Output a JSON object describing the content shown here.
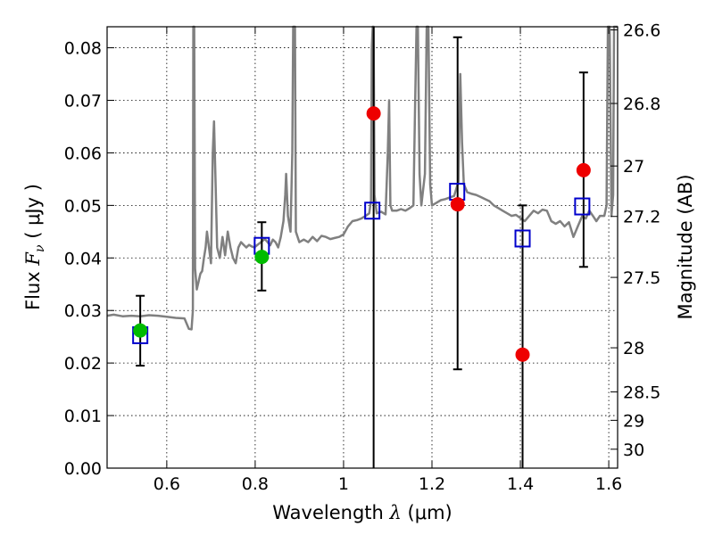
{
  "chart_data": {
    "type": "scatter",
    "xlabel_text": "Wavelength",
    "xlabel_symbol": "λ",
    "xlabel_unit": "(μm)",
    "ylabel_text": "Flux",
    "ylabel_symbol": "F",
    "ylabel_subscript": "ν",
    "ylabel_unit": "( μJy )",
    "y2label": "Magnitude (AB)",
    "xlim": [
      0.465,
      1.62
    ],
    "ylim": [
      0.0,
      0.084
    ],
    "grid": true,
    "x_ticks": [
      0.6,
      0.8,
      1.0,
      1.2,
      1.4,
      1.6
    ],
    "x_tick_labels": [
      "0.6",
      "0.8",
      "1",
      "1.2",
      "1.4",
      "1.6"
    ],
    "y_ticks": [
      0.0,
      0.01,
      0.02,
      0.03,
      0.04,
      0.05,
      0.06,
      0.07,
      0.08
    ],
    "y_tick_labels": [
      "0.00",
      "0.01",
      "0.02",
      "0.03",
      "0.04",
      "0.05",
      "0.06",
      "0.07",
      "0.08"
    ],
    "y2_ticks": [
      {
        "label": "26.6",
        "flux": 0.0834
      },
      {
        "label": "26.8",
        "flux": 0.0694
      },
      {
        "label": "27",
        "flux": 0.0575
      },
      {
        "label": "27.2",
        "flux": 0.0479
      },
      {
        "label": "27.5",
        "flux": 0.0363
      },
      {
        "label": "28",
        "flux": 0.0229
      },
      {
        "label": "28.5",
        "flux": 0.0145
      },
      {
        "label": "29",
        "flux": 0.0091
      },
      {
        "label": "30",
        "flux": 0.0036
      }
    ],
    "template_spectrum": {
      "color": "#808080",
      "points": [
        [
          0.465,
          0.029
        ],
        [
          0.48,
          0.0292
        ],
        [
          0.5,
          0.0289
        ],
        [
          0.52,
          0.029
        ],
        [
          0.54,
          0.0289
        ],
        [
          0.56,
          0.0291
        ],
        [
          0.58,
          0.029
        ],
        [
          0.6,
          0.0288
        ],
        [
          0.62,
          0.0286
        ],
        [
          0.64,
          0.0285
        ],
        [
          0.65,
          0.0265
        ],
        [
          0.656,
          0.0264
        ],
        [
          0.659,
          0.03
        ],
        [
          0.66,
          0.084
        ],
        [
          0.662,
          0.084
        ],
        [
          0.664,
          0.038
        ],
        [
          0.668,
          0.034
        ],
        [
          0.672,
          0.0355
        ],
        [
          0.676,
          0.037
        ],
        [
          0.68,
          0.0375
        ],
        [
          0.684,
          0.04
        ],
        [
          0.688,
          0.042
        ],
        [
          0.691,
          0.045
        ],
        [
          0.694,
          0.043
        ],
        [
          0.7,
          0.039
        ],
        [
          0.704,
          0.06
        ],
        [
          0.707,
          0.066
        ],
        [
          0.71,
          0.056
        ],
        [
          0.714,
          0.042
        ],
        [
          0.72,
          0.04
        ],
        [
          0.726,
          0.044
        ],
        [
          0.732,
          0.0405
        ],
        [
          0.738,
          0.045
        ],
        [
          0.744,
          0.042
        ],
        [
          0.75,
          0.04
        ],
        [
          0.756,
          0.039
        ],
        [
          0.762,
          0.042
        ],
        [
          0.768,
          0.043
        ],
        [
          0.774,
          0.0425
        ],
        [
          0.78,
          0.042
        ],
        [
          0.786,
          0.0425
        ],
        [
          0.792,
          0.0422
        ],
        [
          0.798,
          0.042
        ],
        [
          0.804,
          0.0424
        ],
        [
          0.81,
          0.0428
        ],
        [
          0.816,
          0.0432
        ],
        [
          0.822,
          0.0436
        ],
        [
          0.828,
          0.043
        ],
        [
          0.834,
          0.0424
        ],
        [
          0.84,
          0.0435
        ],
        [
          0.846,
          0.043
        ],
        [
          0.852,
          0.042
        ],
        [
          0.858,
          0.044
        ],
        [
          0.864,
          0.047
        ],
        [
          0.868,
          0.052
        ],
        [
          0.87,
          0.056
        ],
        [
          0.874,
          0.048
        ],
        [
          0.88,
          0.045
        ],
        [
          0.884,
          0.06
        ],
        [
          0.886,
          0.084
        ],
        [
          0.89,
          0.084
        ],
        [
          0.892,
          0.045
        ],
        [
          0.9,
          0.043
        ],
        [
          0.91,
          0.0435
        ],
        [
          0.92,
          0.043
        ],
        [
          0.93,
          0.044
        ],
        [
          0.94,
          0.0432
        ],
        [
          0.95,
          0.0442
        ],
        [
          0.96,
          0.044
        ],
        [
          0.97,
          0.0436
        ],
        [
          0.98,
          0.0438
        ],
        [
          0.99,
          0.044
        ],
        [
          1.0,
          0.0445
        ],
        [
          1.01,
          0.046
        ],
        [
          1.02,
          0.047
        ],
        [
          1.03,
          0.0472
        ],
        [
          1.04,
          0.0475
        ],
        [
          1.05,
          0.048
        ],
        [
          1.058,
          0.0485
        ],
        [
          1.062,
          0.051
        ],
        [
          1.064,
          0.08
        ],
        [
          1.066,
          0.084
        ],
        [
          1.068,
          0.084
        ],
        [
          1.07,
          0.052
        ],
        [
          1.075,
          0.0485
        ],
        [
          1.085,
          0.0488
        ],
        [
          1.095,
          0.0483
        ],
        [
          1.1,
          0.06
        ],
        [
          1.103,
          0.07
        ],
        [
          1.106,
          0.05
        ],
        [
          1.11,
          0.049
        ],
        [
          1.12,
          0.049
        ],
        [
          1.13,
          0.0493
        ],
        [
          1.14,
          0.049
        ],
        [
          1.15,
          0.0495
        ],
        [
          1.158,
          0.05
        ],
        [
          1.162,
          0.07
        ],
        [
          1.165,
          0.084
        ],
        [
          1.168,
          0.084
        ],
        [
          1.172,
          0.056
        ],
        [
          1.176,
          0.05
        ],
        [
          1.184,
          0.056
        ],
        [
          1.188,
          0.084
        ],
        [
          1.192,
          0.084
        ],
        [
          1.196,
          0.054
        ],
        [
          1.2,
          0.05
        ],
        [
          1.21,
          0.0505
        ],
        [
          1.22,
          0.051
        ],
        [
          1.23,
          0.0512
        ],
        [
          1.24,
          0.0515
        ],
        [
          1.25,
          0.0518
        ],
        [
          1.26,
          0.0545
        ],
        [
          1.264,
          0.075
        ],
        [
          1.268,
          0.062
        ],
        [
          1.272,
          0.054
        ],
        [
          1.28,
          0.0525
        ],
        [
          1.29,
          0.0522
        ],
        [
          1.3,
          0.052
        ],
        [
          1.31,
          0.0516
        ],
        [
          1.32,
          0.0512
        ],
        [
          1.33,
          0.0508
        ],
        [
          1.34,
          0.05
        ],
        [
          1.35,
          0.0495
        ],
        [
          1.36,
          0.049
        ],
        [
          1.37,
          0.0485
        ],
        [
          1.38,
          0.048
        ],
        [
          1.39,
          0.0482
        ],
        [
          1.4,
          0.0476
        ],
        [
          1.41,
          0.047
        ],
        [
          1.42,
          0.048
        ],
        [
          1.43,
          0.049
        ],
        [
          1.44,
          0.0485
        ],
        [
          1.45,
          0.0492
        ],
        [
          1.46,
          0.049
        ],
        [
          1.47,
          0.047
        ],
        [
          1.48,
          0.0465
        ],
        [
          1.49,
          0.047
        ],
        [
          1.5,
          0.046
        ],
        [
          1.51,
          0.0468
        ],
        [
          1.52,
          0.044
        ],
        [
          1.53,
          0.046
        ],
        [
          1.54,
          0.048
        ],
        [
          1.548,
          0.0475
        ],
        [
          1.556,
          0.049
        ],
        [
          1.564,
          0.048
        ],
        [
          1.572,
          0.047
        ],
        [
          1.58,
          0.048
        ],
        [
          1.59,
          0.048
        ],
        [
          1.595,
          0.05
        ],
        [
          1.598,
          0.084
        ],
        [
          1.602,
          0.084
        ],
        [
          1.606,
          0.048
        ],
        [
          1.61,
          0.052
        ],
        [
          1.612,
          0.084
        ],
        [
          1.62,
          0.084
        ]
      ]
    },
    "model_points": {
      "color": "#0000cc",
      "points": [
        [
          0.54,
          0.0253
        ],
        [
          0.815,
          0.0423
        ],
        [
          1.065,
          0.049
        ],
        [
          1.257,
          0.0526
        ],
        [
          1.405,
          0.0437
        ],
        [
          1.54,
          0.0498
        ]
      ]
    },
    "observed_points": [
      {
        "x": 0.54,
        "y": 0.0262,
        "err": [
          0.0195,
          0.0328
        ],
        "color": "#00bb00"
      },
      {
        "x": 0.815,
        "y": 0.0402,
        "err": [
          0.0338,
          0.0468
        ],
        "color": "#00bb00"
      },
      {
        "x": 1.068,
        "y": 0.0675,
        "err": [
          0.0,
          0.084
        ],
        "color": "#ee0000"
      },
      {
        "x": 1.258,
        "y": 0.0502,
        "err": [
          0.0188,
          0.082
        ],
        "color": "#ee0000"
      },
      {
        "x": 1.405,
        "y": 0.0216,
        "err": [
          0.0,
          0.05
        ],
        "color": "#ee0000"
      },
      {
        "x": 1.543,
        "y": 0.0567,
        "err": [
          0.0383,
          0.0753
        ],
        "color": "#ee0000"
      }
    ]
  }
}
